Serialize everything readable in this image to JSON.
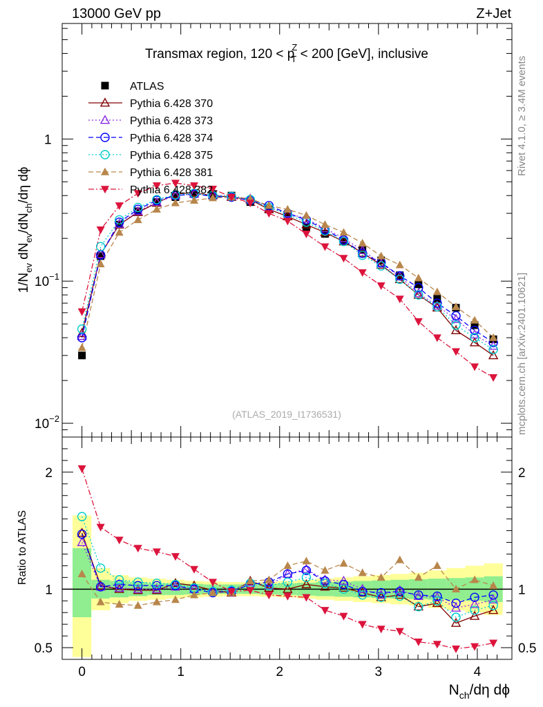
{
  "header": {
    "left": "13000 GeV pp",
    "right": "Z+Jet"
  },
  "side_labels": {
    "rivet": "Rivet 4.1.0, ≥ 3.4M events",
    "mcplots": "mcplots.cern.ch [arXiv:2401.10621]"
  },
  "colors": {
    "band_inner": "#90ee90",
    "band_outer": "#ffff99",
    "atlas": "#000000"
  },
  "chart_data": [
    {
      "type": "scatter",
      "panel": "main",
      "title": "Transmax region, 120 < pTZ < 200 [GeV], inclusive",
      "title_parts": {
        "pre": "Transmax region, 120 < p",
        "sup": "Z",
        "sub": "T",
        "post": " < 200 [GeV], inclusive"
      },
      "ylabel": "1/Nev dNev/dNch/dη dϕ",
      "xlabel": "Nch/dη dϕ",
      "yscale": "log",
      "ylim": [
        0.008,
        6.5
      ],
      "xlim": [
        -0.2,
        4.35
      ],
      "y_ticks": [
        {
          "value": 0.01,
          "mant": "10",
          "exp": "−2"
        },
        {
          "value": 0.1,
          "mant": "10",
          "exp": "−1"
        },
        {
          "value": 1,
          "mant": "1",
          "exp": ""
        }
      ],
      "watermark": "(ATLAS_2019_I1736531)",
      "x": [
        0,
        0.189,
        0.378,
        0.567,
        0.757,
        0.946,
        1.135,
        1.324,
        1.513,
        1.703,
        1.892,
        2.081,
        2.27,
        2.459,
        2.648,
        2.838,
        3.027,
        3.216,
        3.405,
        3.594,
        3.784,
        3.973,
        4.162
      ],
      "series": [
        {
          "name": "ATLAS",
          "color": "#000000",
          "marker": "square-filled",
          "line": "none",
          "values": [
            0.03,
            0.15,
            0.25,
            0.31,
            0.36,
            0.39,
            0.41,
            0.41,
            0.4,
            0.36,
            0.32,
            0.285,
            0.24,
            0.215,
            0.19,
            0.165,
            0.14,
            0.11,
            0.095,
            0.075,
            0.065,
            0.049,
            0.039
          ]
        },
        {
          "name": "Pythia 6.428 370",
          "color": "#800000",
          "marker": "triangle-open",
          "line": "solid",
          "values": [
            0.043,
            0.155,
            0.25,
            0.305,
            0.355,
            0.41,
            0.42,
            0.4,
            0.39,
            0.375,
            0.32,
            0.285,
            0.25,
            0.22,
            0.19,
            0.158,
            0.13,
            0.103,
            0.08,
            0.065,
            0.045,
            0.037,
            0.03
          ]
        },
        {
          "name": "Pythia 6.428 373",
          "color": "#8a2be2",
          "marker": "triangle-open",
          "line": "dotted",
          "values": [
            0.041,
            0.154,
            0.252,
            0.31,
            0.36,
            0.4,
            0.41,
            0.405,
            0.395,
            0.38,
            0.33,
            0.3,
            0.275,
            0.235,
            0.2,
            0.165,
            0.133,
            0.108,
            0.082,
            0.067,
            0.054,
            0.042,
            0.035
          ]
        },
        {
          "name": "Pythia 6.428 374",
          "color": "#0000ff",
          "marker": "circle-open",
          "line": "dashed",
          "values": [
            0.04,
            0.153,
            0.26,
            0.32,
            0.37,
            0.4,
            0.41,
            0.395,
            0.39,
            0.37,
            0.34,
            0.3,
            0.27,
            0.23,
            0.195,
            0.157,
            0.135,
            0.109,
            0.09,
            0.07,
            0.057,
            0.045,
            0.037
          ]
        },
        {
          "name": "Pythia 6.428 375",
          "color": "#00cccc",
          "marker": "circle-open",
          "line": "dotted",
          "values": [
            0.046,
            0.175,
            0.27,
            0.33,
            0.375,
            0.405,
            0.415,
            0.4,
            0.395,
            0.375,
            0.33,
            0.295,
            0.26,
            0.225,
            0.19,
            0.152,
            0.128,
            0.103,
            0.08,
            0.066,
            0.049,
            0.04,
            0.033
          ]
        },
        {
          "name": "Pythia 6.428 381",
          "color": "#b8864b",
          "marker": "triangle-filled",
          "line": "dashed",
          "values": [
            0.034,
            0.132,
            0.22,
            0.27,
            0.32,
            0.355,
            0.37,
            0.385,
            0.39,
            0.38,
            0.34,
            0.32,
            0.29,
            0.25,
            0.22,
            0.185,
            0.15,
            0.13,
            0.105,
            0.084,
            0.066,
            0.053,
            0.04
          ]
        },
        {
          "name": "Pythia 6.428 382",
          "color": "#dc143c",
          "marker": "triangle-down-filled",
          "line": "dashdot",
          "values": [
            0.061,
            0.23,
            0.34,
            0.415,
            0.47,
            0.49,
            0.47,
            0.445,
            0.39,
            0.355,
            0.3,
            0.265,
            0.215,
            0.175,
            0.145,
            0.115,
            0.093,
            0.075,
            0.052,
            0.04,
            0.032,
            0.025,
            0.021
          ]
        }
      ]
    },
    {
      "type": "scatter",
      "panel": "ratio",
      "ylabel": "Ratio to ATLAS",
      "yscale": "linear",
      "ylim": [
        0.4,
        2.3
      ],
      "y_ticks": [
        0.5,
        1,
        2
      ],
      "y_tick_labels": [
        "0.5",
        "1",
        "2"
      ],
      "x_ticks": [
        0,
        1,
        2,
        3,
        4
      ],
      "x_tick_labels": [
        "0",
        "1",
        "2",
        "3",
        "4"
      ],
      "x": [
        0,
        0.189,
        0.378,
        0.567,
        0.757,
        0.946,
        1.135,
        1.324,
        1.513,
        1.703,
        1.892,
        2.081,
        2.27,
        2.459,
        2.648,
        2.838,
        3.027,
        3.216,
        3.405,
        3.594,
        3.784,
        3.973,
        4.162
      ],
      "band_edges": [
        -0.095,
        0.095,
        0.284,
        0.473,
        0.662,
        0.851,
        1.04,
        1.23,
        1.419,
        1.608,
        1.797,
        1.986,
        2.175,
        2.365,
        2.554,
        2.743,
        2.932,
        3.121,
        3.31,
        3.5,
        3.689,
        3.878,
        4.068,
        4.257
      ],
      "band_inner": [
        [
          0.76,
          1.35
        ],
        [
          0.92,
          1.08
        ],
        [
          0.93,
          1.07
        ],
        [
          0.94,
          1.06
        ],
        [
          0.95,
          1.05
        ],
        [
          0.95,
          1.05
        ],
        [
          0.955,
          1.045
        ],
        [
          0.96,
          1.04
        ],
        [
          0.96,
          1.04
        ],
        [
          0.96,
          1.04
        ],
        [
          0.955,
          1.045
        ],
        [
          0.95,
          1.05
        ],
        [
          0.945,
          1.055
        ],
        [
          0.94,
          1.06
        ],
        [
          0.935,
          1.065
        ],
        [
          0.93,
          1.07
        ],
        [
          0.925,
          1.075
        ],
        [
          0.92,
          1.08
        ],
        [
          0.915,
          1.085
        ],
        [
          0.91,
          1.09
        ],
        [
          0.905,
          1.095
        ],
        [
          0.9,
          1.1
        ],
        [
          0.89,
          1.11
        ]
      ],
      "band_outer": [
        [
          0.42,
          1.63
        ],
        [
          0.82,
          1.18
        ],
        [
          0.88,
          1.12
        ],
        [
          0.9,
          1.1
        ],
        [
          0.91,
          1.09
        ],
        [
          0.92,
          1.08
        ],
        [
          0.93,
          1.07
        ],
        [
          0.935,
          1.065
        ],
        [
          0.94,
          1.06
        ],
        [
          0.94,
          1.06
        ],
        [
          0.935,
          1.065
        ],
        [
          0.93,
          1.07
        ],
        [
          0.92,
          1.08
        ],
        [
          0.91,
          1.09
        ],
        [
          0.9,
          1.1
        ],
        [
          0.89,
          1.11
        ],
        [
          0.88,
          1.12
        ],
        [
          0.87,
          1.13
        ],
        [
          0.86,
          1.14
        ],
        [
          0.84,
          1.16
        ],
        [
          0.82,
          1.18
        ],
        [
          0.8,
          1.2
        ],
        [
          0.78,
          1.22
        ]
      ],
      "series": [
        {
          "name": "Pythia 6.428 370",
          "color": "#800000",
          "marker": "triangle-open",
          "line": "solid",
          "values": [
            1.48,
            1.03,
            1.0,
            0.99,
            0.99,
            1.05,
            1.03,
            0.99,
            0.97,
            1.07,
            1.01,
            1.0,
            1.04,
            1.02,
            1.01,
            0.97,
            0.93,
            0.95,
            0.85,
            0.88,
            0.71,
            0.77,
            0.82
          ]
        },
        {
          "name": "Pythia 6.428 373",
          "color": "#8a2be2",
          "marker": "triangle-open",
          "line": "dotted",
          "values": [
            1.4,
            1.02,
            1.01,
            1.0,
            1.0,
            1.02,
            1.0,
            0.99,
            0.99,
            1.06,
            1.03,
            1.13,
            1.17,
            1.08,
            1.07,
            1.0,
            0.95,
            0.99,
            0.94,
            0.93,
            0.84,
            0.87,
            0.91
          ]
        },
        {
          "name": "Pythia 6.428 374",
          "color": "#0000ff",
          "marker": "circle-open",
          "line": "dashed",
          "values": [
            1.47,
            1.02,
            1.04,
            1.03,
            1.03,
            1.03,
            1.0,
            0.97,
            0.98,
            1.04,
            1.06,
            1.13,
            1.16,
            1.07,
            1.04,
            0.98,
            0.97,
            0.98,
            0.95,
            0.94,
            0.88,
            0.93,
            0.95
          ]
        },
        {
          "name": "Pythia 6.428 375",
          "color": "#00cccc",
          "marker": "circle-open",
          "line": "dotted",
          "values": [
            1.62,
            1.18,
            1.08,
            1.06,
            1.05,
            1.04,
            1.01,
            0.98,
            0.99,
            1.05,
            1.03,
            1.06,
            1.1,
            1.05,
            1.0,
            0.95,
            0.93,
            0.94,
            0.85,
            0.9,
            0.76,
            0.82,
            0.86
          ]
        },
        {
          "name": "Pythia 6.428 381",
          "color": "#b8864b",
          "marker": "triangle-filled",
          "line": "dashed",
          "values": [
            1.13,
            0.89,
            0.87,
            0.86,
            0.89,
            0.91,
            0.95,
            0.97,
            0.97,
            1.07,
            1.08,
            1.2,
            1.24,
            1.16,
            1.22,
            1.14,
            1.1,
            1.25,
            1.1,
            1.2,
            1.0,
            1.08,
            1.03
          ]
        },
        {
          "name": "Pythia 6.428 382",
          "color": "#dc143c",
          "marker": "triangle-down-filled",
          "line": "dashdot",
          "values": [
            2.03,
            1.53,
            1.42,
            1.35,
            1.32,
            1.28,
            1.17,
            1.06,
            0.98,
            0.99,
            0.95,
            0.94,
            0.93,
            0.82,
            0.77,
            0.7,
            0.66,
            0.64,
            0.55,
            0.53,
            0.49,
            0.51,
            0.54
          ]
        }
      ]
    }
  ]
}
